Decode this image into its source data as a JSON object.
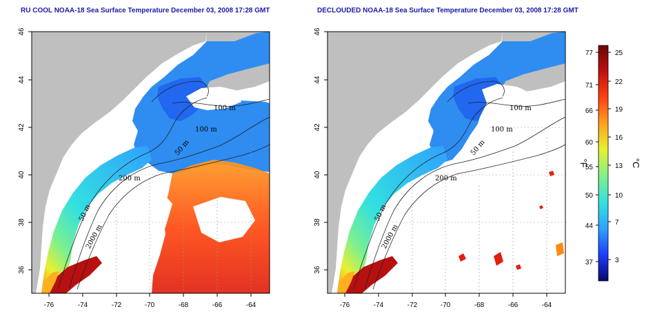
{
  "panels": {
    "left": {
      "title": "RU COOL NOAA-18 Sea Surface Temperature December 03, 2008 17:28 GMT"
    },
    "right": {
      "title": "DECLOUDED NOAA-18 Sea Surface Temperature December 03, 2008 17:28 GMT"
    }
  },
  "axes": {
    "lon_ticks": [
      "-76",
      "-74",
      "-72",
      "-70",
      "-68",
      "-66",
      "-64"
    ],
    "lat_ticks": [
      "46",
      "44",
      "42",
      "40",
      "38",
      "36"
    ],
    "lon_range": [
      -77,
      -63
    ],
    "lat_range": [
      35,
      46
    ]
  },
  "contours": {
    "labels": [
      "100 m",
      "100 m",
      "50 m",
      "200 m",
      "50 m",
      "2000 m"
    ]
  },
  "colorbar": {
    "fahrenheit_ticks": [
      "77",
      "71",
      "66",
      "60",
      "55",
      "50",
      "44",
      "37"
    ],
    "celsius_ticks": [
      "25",
      "22",
      "19",
      "16",
      "13",
      "10",
      "7",
      "3"
    ],
    "unit_f": "°F",
    "unit_c": "°C",
    "colors": [
      "#08086b",
      "#1e3cff",
      "#2fa0ff",
      "#33e0e0",
      "#7cf090",
      "#e8f030",
      "#ffa020",
      "#ff4010",
      "#c01010",
      "#6a0808"
    ]
  },
  "colors": {
    "land": "#bfbfbf",
    "ocean_cloud": "#ffffff",
    "title_blue": "#1a1aa8"
  }
}
